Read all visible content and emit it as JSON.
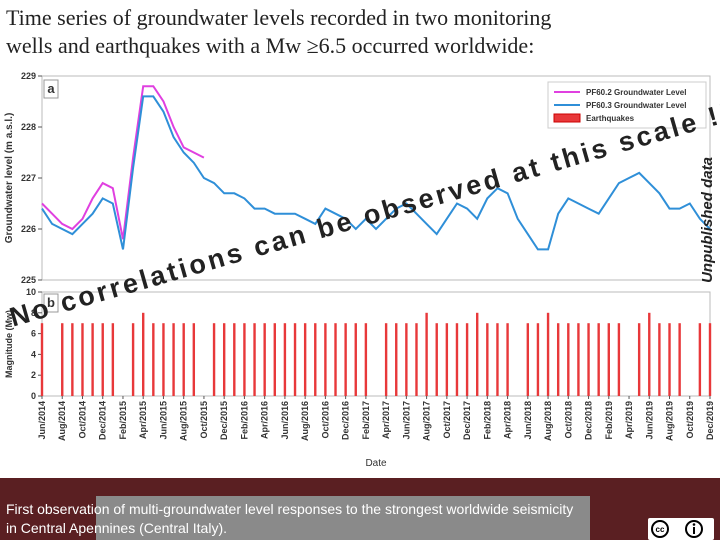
{
  "chart_data": {
    "type": "line",
    "title": [
      "Time series of groundwater levels recorded in two monitoring",
      "wells and earthquakes with a Mw ≥6.5 occurred worldwide:"
    ],
    "panel_a_label": "a",
    "panel_b_label": "b",
    "ylabel": "Groundwater level (m a.s.l.)",
    "y2label": "Magnitude (Mw)",
    "xlabel": "Date",
    "annotation": "No correlations can be observed at this scale !!!!",
    "side_note": "Unpublished data",
    "footer": "First observation of multi-groundwater level responses to the strongest worldwide seismicity in Central Apennines (Central Italy).",
    "categories": [
      "Jun/2014",
      null,
      "Aug/2014",
      null,
      "Oct/2014",
      null,
      "Dec/2014",
      null,
      "Feb/2015",
      null,
      "Apr/2015",
      null,
      "Jun/2015",
      null,
      "Aug/2015",
      null,
      "Oct/2015",
      null,
      "Dec/2015",
      null,
      "Feb/2016",
      null,
      "Apr/2016",
      null,
      "Jun/2016",
      null,
      "Aug/2016",
      null,
      "Oct/2016",
      null,
      "Dec/2016",
      null,
      "Feb/2017",
      null,
      "Apr/2017",
      null,
      "Jun/2017",
      null,
      "Aug/2017",
      null,
      "Oct/2017",
      null,
      "Dec/2017",
      null,
      "Feb/2018",
      null,
      "Apr/2018",
      null,
      "Jun/2018",
      null,
      "Aug/2018",
      null,
      "Oct/2018",
      null,
      "Dec/2018",
      null,
      "Feb/2019",
      null,
      "Apr/2019",
      null,
      "Jun/2019",
      null,
      "Aug/2019",
      null,
      "Oct/2019",
      null,
      "Dec/2019"
    ],
    "series": [
      {
        "name": "PF60.2 Groundwater Level",
        "color": "#e040e0",
        "values": [
          226.5,
          226.3,
          226.1,
          226.0,
          226.2,
          226.6,
          226.9,
          226.8,
          225.8,
          227.4,
          228.8,
          228.8,
          228.5,
          228.0,
          227.6,
          227.5,
          227.4,
          null,
          null,
          null,
          null,
          null,
          null,
          null,
          null,
          null,
          null,
          null,
          null,
          null,
          null,
          null,
          null,
          null,
          null,
          null,
          null,
          null,
          null,
          null,
          null,
          null,
          null,
          null,
          null,
          null,
          null,
          null,
          null,
          null,
          null,
          null,
          null,
          null,
          null,
          null,
          null,
          null,
          null,
          null,
          null,
          null,
          null,
          null,
          null,
          null,
          null
        ]
      },
      {
        "name": "PF60.3 Groundwater Level",
        "color": "#2f8fd8",
        "values": [
          226.4,
          226.1,
          226.0,
          225.9,
          226.1,
          226.3,
          226.6,
          226.5,
          225.6,
          227.2,
          228.6,
          228.6,
          228.3,
          227.8,
          227.5,
          227.3,
          227.0,
          226.9,
          226.7,
          226.7,
          226.6,
          226.4,
          226.4,
          226.3,
          226.3,
          226.3,
          226.2,
          226.1,
          226.4,
          226.3,
          226.2,
          226.0,
          226.2,
          226.0,
          226.2,
          226.4,
          226.5,
          226.3,
          226.1,
          225.9,
          226.2,
          226.5,
          226.4,
          226.2,
          226.6,
          226.8,
          226.7,
          226.2,
          225.9,
          225.6,
          225.6,
          226.3,
          226.6,
          226.5,
          226.4,
          226.3,
          226.6,
          226.9,
          227.0,
          227.1,
          226.9,
          226.7,
          226.4,
          226.4,
          226.5,
          226.2,
          226.0
        ]
      },
      {
        "name": "Earthquakes",
        "color": "#e8383a",
        "axis": "y2",
        "type": "bar",
        "values": [
          7,
          null,
          7,
          7,
          7,
          7,
          7,
          7,
          null,
          7,
          8,
          7,
          7,
          7,
          7,
          7,
          null,
          7,
          7,
          7,
          7,
          7,
          7,
          7,
          7,
          7,
          7,
          7,
          7,
          7,
          7,
          7,
          7,
          null,
          7,
          7,
          7,
          7,
          8,
          7,
          7,
          7,
          7,
          8,
          7,
          7,
          7,
          null,
          7,
          7,
          8,
          7,
          7,
          7,
          7,
          7,
          7,
          7,
          null,
          7,
          8,
          7,
          7,
          7,
          null,
          7,
          7
        ]
      }
    ],
    "ylim": [
      225,
      229
    ],
    "yticks": [
      225,
      226,
      227,
      228,
      229
    ],
    "y2lim": [
      0,
      10
    ],
    "y2ticks": [
      0,
      2,
      4,
      6,
      8,
      10
    ],
    "legend": "upper right"
  }
}
